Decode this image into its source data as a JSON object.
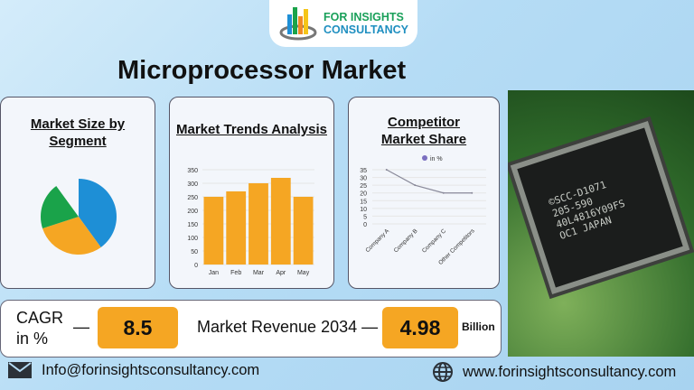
{
  "logo": {
    "line1": "FOR INSIGHTS",
    "line2": "CONSULTANCY"
  },
  "title": "Microprocessor Market",
  "cards": {
    "segment": {
      "title_line1": "Market Size by",
      "title_line2": "Segment"
    },
    "trends": {
      "title": "Market Trends Analysis"
    },
    "competitor": {
      "title_line1": "Competitor",
      "title_line2": "Market Share"
    }
  },
  "chip_image": {
    "lines": [
      "©SCC-D1071",
      "205-590",
      "40L4816Y09FS",
      "OC1 JAPAN"
    ]
  },
  "stats": {
    "cagr_label_line1": "CAGR",
    "cagr_label_line2": "in %",
    "dash": "—",
    "cagr_value": "8.5",
    "revenue_label": "Market Revenue 2034 —",
    "revenue_value": "4.98",
    "revenue_unit": "Billion"
  },
  "footer": {
    "email": "Info@forinsightsconsultancy.com",
    "website": "www.forinsightsconsultancy.com"
  },
  "chart_data": [
    {
      "type": "pie",
      "values": [
        40,
        30,
        20,
        10
      ],
      "colors": [
        "#1e8fd6",
        "#f5a623",
        "#1aa34a",
        "#f3f6fb"
      ]
    },
    {
      "type": "bar",
      "categories": [
        "Jan",
        "Feb",
        "Mar",
        "Apr",
        "May"
      ],
      "values": [
        250,
        270,
        300,
        320,
        250
      ],
      "ylim": [
        0,
        350
      ],
      "yticks": [
        0,
        50,
        100,
        150,
        200,
        250,
        300,
        350
      ],
      "color": "#f5a623",
      "grid": true
    },
    {
      "type": "line",
      "categories": [
        "Company A",
        "Company B",
        "Company C",
        "Other Competitors"
      ],
      "series": [
        {
          "name": "in %",
          "values": [
            35,
            25,
            20,
            20
          ]
        }
      ],
      "ylim": [
        0,
        35
      ],
      "yticks": [
        0,
        5,
        10,
        15,
        20,
        25,
        30,
        35
      ],
      "color": "#8a8a9a",
      "legend_color": "#7b6fc0",
      "legend": "top",
      "grid": true
    }
  ]
}
